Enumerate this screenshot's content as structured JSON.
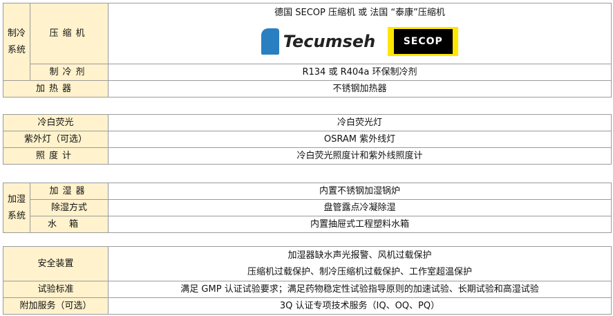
{
  "refrigeration": {
    "group": "制冷\n系统",
    "compressor_label": "压缩机",
    "compressor_value": "德国 SECOP 压缩机 或 法国 “泰康”压缩机",
    "logo1": "Tecumseh",
    "logo2": "SECOP",
    "refrigerant_label": "制冷剂",
    "refrigerant_value": "R134 或 R404a 环保制冷剂"
  },
  "heater": {
    "label": "加热器",
    "value": "不锈钢加热器"
  },
  "lighting": [
    {
      "label": "冷白荧光",
      "value": "冷白荧光灯"
    },
    {
      "label": "紫外灯（可选）",
      "value": "OSRAM  紫外线灯"
    },
    {
      "label": "照度计",
      "value": "冷白荧光照度计和紫外线照度计"
    }
  ],
  "humidity": {
    "group": "加湿\n系统",
    "rows": [
      {
        "label": "加湿器",
        "value": "内置不锈钢加湿锅炉"
      },
      {
        "label": "除湿方式",
        "value": "盘管露点冷凝除湿"
      },
      {
        "label": "水箱",
        "value": "内置抽屉式工程塑料水箱"
      }
    ]
  },
  "safety": {
    "label": "安全装置",
    "line1": "加湿器缺水声光报警、风机过载保护",
    "line2": "压缩机过载保护、制冷压缩机过载保护、工作室超温保护"
  },
  "standard": {
    "label": "试验标准",
    "value": "满足 GMP 认证试验要求；满足药物稳定性试验指导原则的加速试验、长期试验和高湿试验"
  },
  "service": {
    "label": "附加服务（可选）",
    "value": "3Q 认证专项技术服务（IQ、OQ、PQ）"
  },
  "colors": {
    "label_bg": "#fff2cc",
    "border": "#9a9a9a",
    "secop_yellow": "#ffe600",
    "tecumseh_blue": "#2a7fc1"
  }
}
